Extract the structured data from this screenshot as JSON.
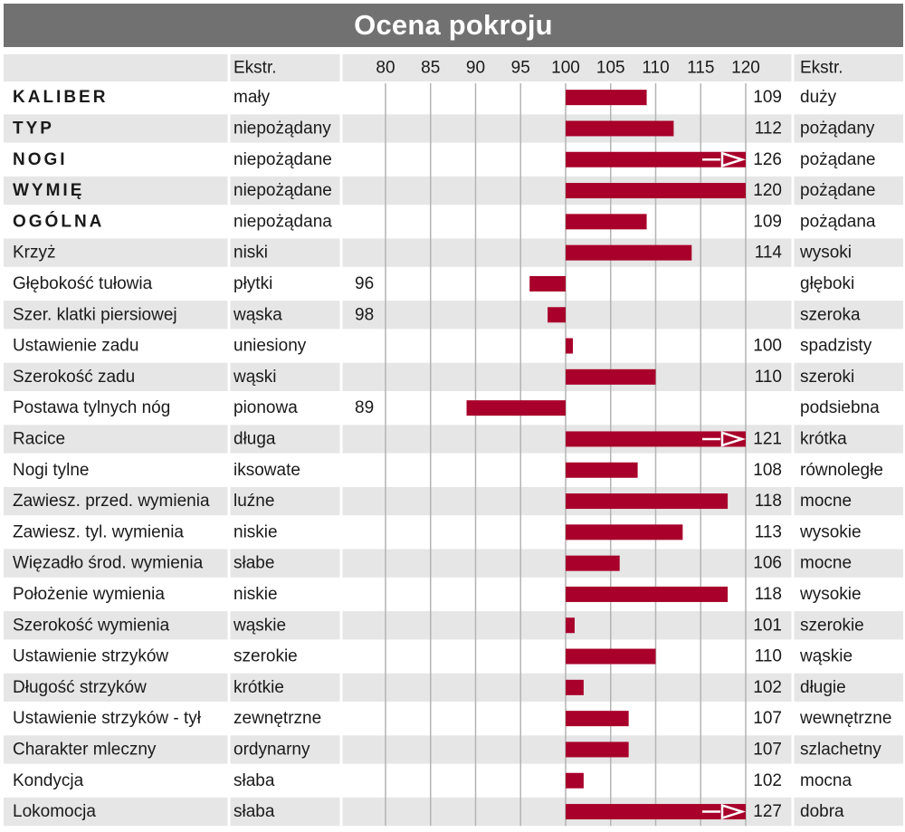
{
  "title": "Ocena pokroju",
  "header": {
    "left_extreme": "Ekstr.",
    "right_extreme": "Ekstr."
  },
  "colors": {
    "bar": "#a8002a",
    "row_even": "#e6e6e6",
    "row_odd": "#ffffff",
    "header_row": "#e6e6e6",
    "title_bar": "#717171",
    "grid": "#b4b4b4"
  },
  "chart_data": {
    "type": "bar",
    "orientation": "horizontal",
    "baseline": 100,
    "xlim": [
      80,
      120
    ],
    "xticks": [
      80,
      85,
      90,
      95,
      100,
      105,
      110,
      115,
      120
    ],
    "rows": [
      {
        "trait": "KALIBER",
        "bold": true,
        "low": "mały",
        "value": 109,
        "label": "109",
        "high": "duży"
      },
      {
        "trait": "TYP",
        "bold": true,
        "low": "niepożądany",
        "value": 112,
        "label": "112",
        "high": "pożądany"
      },
      {
        "trait": "NOGI",
        "bold": true,
        "low": "niepożądane",
        "value": 126,
        "label": "126",
        "high": "pożądane"
      },
      {
        "trait": "WYMIĘ",
        "bold": true,
        "low": "niepożądane",
        "value": 120,
        "label": "120",
        "high": "pożądane"
      },
      {
        "trait": "OGÓLNA",
        "bold": true,
        "low": "niepożądana",
        "value": 109,
        "label": "109",
        "high": "pożądana"
      },
      {
        "trait": "Krzyż",
        "bold": false,
        "low": "niski",
        "value": 114,
        "label": "114",
        "high": "wysoki"
      },
      {
        "trait": "Głębokość tułowia",
        "bold": false,
        "low": "płytki",
        "value": 96,
        "label": "96",
        "high": "głęboki"
      },
      {
        "trait": "Szer. klatki piersiowej",
        "bold": false,
        "low": "wąska",
        "value": 98,
        "label": "98",
        "high": "szeroka"
      },
      {
        "trait": "Ustawienie zadu",
        "bold": false,
        "low": "uniesiony",
        "value": 100,
        "label": "100",
        "high": "spadzisty"
      },
      {
        "trait": "Szerokość zadu",
        "bold": false,
        "low": "wąski",
        "value": 110,
        "label": "110",
        "high": "szeroki"
      },
      {
        "trait": "Postawa tylnych nóg",
        "bold": false,
        "low": "pionowa",
        "value": 89,
        "label": "89",
        "high": "podsiebna"
      },
      {
        "trait": "Racice",
        "bold": false,
        "low": "długa",
        "value": 121,
        "label": "121",
        "high": "krótka"
      },
      {
        "trait": "Nogi tylne",
        "bold": false,
        "low": "iksowate",
        "value": 108,
        "label": "108",
        "high": "równoległe"
      },
      {
        "trait": "Zawiesz. przed. wymienia",
        "bold": false,
        "low": "luźne",
        "value": 118,
        "label": "118",
        "high": "mocne"
      },
      {
        "trait": "Zawiesz. tyl. wymienia",
        "bold": false,
        "low": "niskie",
        "value": 113,
        "label": "113",
        "high": "wysokie"
      },
      {
        "trait": "Więzadło środ. wymienia",
        "bold": false,
        "low": "słabe",
        "value": 106,
        "label": "106",
        "high": "mocne"
      },
      {
        "trait": "Położenie wymienia",
        "bold": false,
        "low": "niskie",
        "value": 118,
        "label": "118",
        "high": "wysokie"
      },
      {
        "trait": "Szerokość wymienia",
        "bold": false,
        "low": "wąskie",
        "value": 101,
        "label": "101",
        "high": "szerokie"
      },
      {
        "trait": "Ustawienie strzyków",
        "bold": false,
        "low": "szerokie",
        "value": 110,
        "label": "110",
        "high": "wąskie"
      },
      {
        "trait": "Długość strzyków",
        "bold": false,
        "low": "krótkie",
        "value": 102,
        "label": "102",
        "high": "długie"
      },
      {
        "trait": "Ustawienie strzyków - tył",
        "bold": false,
        "low": "zewnętrzne",
        "value": 107,
        "label": "107",
        "high": "wewnętrzne"
      },
      {
        "trait": "Charakter mleczny",
        "bold": false,
        "low": "ordynarny",
        "value": 107,
        "label": "107",
        "high": "szlachetny"
      },
      {
        "trait": "Kondycja",
        "bold": false,
        "low": "słaba",
        "value": 102,
        "label": "102",
        "high": "mocna"
      },
      {
        "trait": "Lokomocja",
        "bold": false,
        "low": "słaba",
        "value": 127,
        "label": "127",
        "high": "dobra"
      }
    ]
  }
}
